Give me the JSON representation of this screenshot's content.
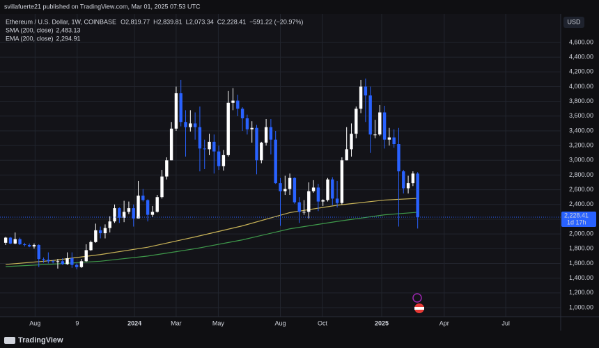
{
  "publisher_note": "svillafuerte21 published on TradingView.com, Mar 01, 2025 07:53 UTC",
  "brand": "TradingView",
  "chart_data": {
    "type": "candlestick",
    "title": "Ethereum / U.S. Dollar, 1W, COINBASE",
    "legend_values": [
      {
        "label": "O",
        "value": "2,819.77"
      },
      {
        "label": "H",
        "value": "2,839.81"
      },
      {
        "label": "L",
        "value": "2,073.34"
      },
      {
        "label": "C",
        "value": "2,228.41"
      }
    ],
    "change": "−591.22 (−20.97%)",
    "currency": "USD",
    "last_price_label": "2,228.41",
    "countdown": "1d 17h",
    "up_color": "#ffffff",
    "down_color": "#2962ff",
    "grid": true,
    "ohlc": [
      [
        1880,
        1960,
        1850,
        1950
      ],
      [
        1950,
        1960,
        1860,
        1870
      ],
      [
        1870,
        2020,
        1860,
        1930
      ],
      [
        1930,
        1950,
        1850,
        1860
      ],
      [
        1860,
        1880,
        1830,
        1850
      ],
      [
        1850,
        1870,
        1820,
        1830
      ],
      [
        1830,
        1870,
        1800,
        1850
      ],
      [
        1850,
        1860,
        1550,
        1660
      ],
      [
        1660,
        1680,
        1610,
        1650
      ],
      [
        1650,
        1750,
        1600,
        1630
      ],
      [
        1630,
        1650,
        1600,
        1620
      ],
      [
        1620,
        1660,
        1530,
        1630
      ],
      [
        1630,
        1670,
        1580,
        1590
      ],
      [
        1590,
        1750,
        1580,
        1670
      ],
      [
        1670,
        1750,
        1540,
        1580
      ],
      [
        1580,
        1600,
        1520,
        1550
      ],
      [
        1550,
        1660,
        1540,
        1630
      ],
      [
        1630,
        1860,
        1620,
        1780
      ],
      [
        1780,
        1910,
        1770,
        1890
      ],
      [
        1890,
        2140,
        1880,
        2050
      ],
      [
        2050,
        2100,
        1940,
        2010
      ],
      [
        2010,
        2130,
        1940,
        2080
      ],
      [
        2080,
        2240,
        2020,
        2170
      ],
      [
        2170,
        2400,
        2150,
        2350
      ],
      [
        2350,
        2360,
        2150,
        2220
      ],
      [
        2220,
        2450,
        2160,
        2300
      ],
      [
        2300,
        2440,
        2270,
        2350
      ],
      [
        2350,
        2400,
        2100,
        2210
      ],
      [
        2210,
        2720,
        2210,
        2520
      ],
      [
        2520,
        2610,
        2440,
        2460
      ],
      [
        2460,
        2470,
        2170,
        2260
      ],
      [
        2260,
        2380,
        2230,
        2300
      ],
      [
        2300,
        2530,
        2290,
        2500
      ],
      [
        2500,
        2870,
        2480,
        2780
      ],
      [
        2780,
        3040,
        2740,
        3000
      ],
      [
        3000,
        3520,
        3000,
        3430
      ],
      [
        3430,
        4000,
        3400,
        3910
      ],
      [
        3910,
        4090,
        3460,
        3520
      ],
      [
        3520,
        3680,
        3050,
        3450
      ],
      [
        3450,
        3680,
        3390,
        3500
      ],
      [
        3500,
        3650,
        3280,
        3450
      ],
      [
        3450,
        3730,
        2850,
        3160
      ],
      [
        3160,
        3280,
        2880,
        3150
      ],
      [
        3150,
        3360,
        3070,
        3250
      ],
      [
        3250,
        3350,
        2820,
        3120
      ],
      [
        3120,
        3200,
        2870,
        2920
      ],
      [
        2920,
        3140,
        2860,
        3070
      ],
      [
        3070,
        3940,
        3050,
        3780
      ],
      [
        3780,
        3980,
        3680,
        3810
      ],
      [
        3810,
        3890,
        3600,
        3700
      ],
      [
        3700,
        3720,
        3400,
        3570
      ],
      [
        3570,
        3620,
        3350,
        3420
      ],
      [
        3420,
        3530,
        3240,
        3440
      ],
      [
        3440,
        3480,
        2810,
        3000
      ],
      [
        3000,
        3250,
        2960,
        3240
      ],
      [
        3240,
        3560,
        3200,
        3450
      ],
      [
        3450,
        3560,
        3080,
        3280
      ],
      [
        3280,
        3400,
        2680,
        2690
      ],
      [
        2690,
        2760,
        2110,
        2580
      ],
      [
        2580,
        2790,
        2530,
        2610
      ],
      [
        2610,
        2820,
        2530,
        2760
      ],
      [
        2760,
        2770,
        2410,
        2430
      ],
      [
        2430,
        2500,
        2150,
        2300
      ],
      [
        2300,
        2460,
        2260,
        2300
      ],
      [
        2300,
        2700,
        2210,
        2580
      ],
      [
        2580,
        2730,
        2560,
        2630
      ],
      [
        2630,
        2680,
        2310,
        2440
      ],
      [
        2440,
        2470,
        2380,
        2460
      ],
      [
        2460,
        2760,
        2440,
        2740
      ],
      [
        2740,
        2770,
        2390,
        2480
      ],
      [
        2480,
        2720,
        2360,
        2420
      ],
      [
        2420,
        3040,
        2400,
        3000
      ],
      [
        3000,
        3450,
        3000,
        3150
      ],
      [
        3150,
        3500,
        3050,
        3360
      ],
      [
        3360,
        3730,
        3300,
        3700
      ],
      [
        3700,
        4090,
        3640,
        4000
      ],
      [
        4000,
        4110,
        3520,
        3880
      ],
      [
        3880,
        4000,
        3100,
        3350
      ],
      [
        3350,
        3550,
        3300,
        3350
      ],
      [
        3350,
        3750,
        3330,
        3650
      ],
      [
        3650,
        3740,
        3160,
        3280
      ],
      [
        3280,
        3440,
        3200,
        3310
      ],
      [
        3310,
        3420,
        3170,
        3220
      ],
      [
        3220,
        3440,
        2100,
        2850
      ],
      [
        2850,
        2870,
        2550,
        2620
      ],
      [
        2620,
        2790,
        2550,
        2690
      ],
      [
        2690,
        2850,
        2650,
        2820
      ],
      [
        2819.77,
        2839.81,
        2073.34,
        2228.41
      ]
    ],
    "indicators": [
      {
        "name": "SMA (200, close)",
        "value_label": "2,483.13",
        "color": "#c9b458",
        "x": [
          0,
          10,
          20,
          30,
          40,
          50,
          60,
          70,
          80,
          87
        ],
        "values": [
          1586,
          1640,
          1720,
          1820,
          1960,
          2110,
          2290,
          2390,
          2460,
          2483
        ]
      },
      {
        "name": "EMA (200, close)",
        "value_label": "2,294.91",
        "color": "#3f9a4b",
        "x": [
          0,
          10,
          20,
          30,
          40,
          50,
          60,
          70,
          80,
          87
        ],
        "values": [
          1557,
          1590,
          1630,
          1700,
          1800,
          1920,
          2070,
          2170,
          2260,
          2295
        ]
      }
    ],
    "xlim": [
      -1.2,
      117.2
    ],
    "xticks": [
      {
        "value": 6.2,
        "label": "Aug"
      },
      {
        "value": 15.1,
        "label": "9"
      },
      {
        "value": 27.2,
        "label": "2024"
      },
      {
        "value": 36,
        "label": "Mar"
      },
      {
        "value": 44.9,
        "label": "May"
      },
      {
        "value": 58,
        "label": "Aug"
      },
      {
        "value": 66.9,
        "label": "Oct"
      },
      {
        "value": 79.4,
        "label": "2025"
      },
      {
        "value": 92.6,
        "label": "Apr"
      },
      {
        "value": 105.6,
        "label": "Jul"
      }
    ],
    "ylim": [
      877,
      4987
    ],
    "yticks": [
      {
        "value": 1000,
        "label": "1,000.00"
      },
      {
        "value": 1200,
        "label": "1,200.00"
      },
      {
        "value": 1400,
        "label": "1,400.00"
      },
      {
        "value": 1600,
        "label": "1,600.00"
      },
      {
        "value": 1800,
        "label": "1,800.00"
      },
      {
        "value": 2000,
        "label": "2,000.00"
      },
      {
        "value": 2200,
        "label": "2,200.00"
      },
      {
        "value": 2400,
        "label": "2,400.00"
      },
      {
        "value": 2600,
        "label": "2,600.00"
      },
      {
        "value": 2800,
        "label": "2,800.00"
      },
      {
        "value": 3000,
        "label": "3,000.00"
      },
      {
        "value": 3200,
        "label": "3,200.00"
      },
      {
        "value": 3400,
        "label": "3,400.00"
      },
      {
        "value": 3600,
        "label": "3,600.00"
      },
      {
        "value": 3800,
        "label": "3,800.00"
      },
      {
        "value": 4000,
        "label": "4,000.00"
      },
      {
        "value": 4200,
        "label": "4,200.00"
      },
      {
        "value": 4400,
        "label": "4,400.00"
      },
      {
        "value": 4600,
        "label": "4,600.00"
      }
    ]
  }
}
